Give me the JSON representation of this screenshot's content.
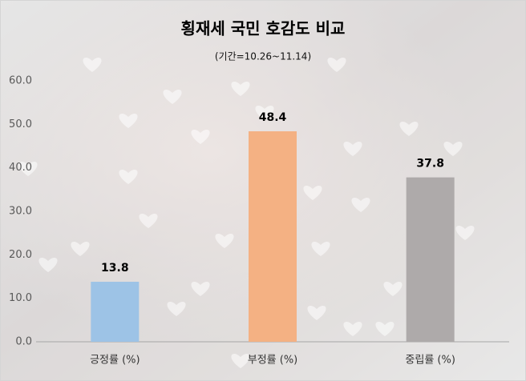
{
  "chart_data": {
    "type": "bar",
    "title": "횡재세 국민 호감도 비교",
    "subtitle": "(기간=10.26~11.14)",
    "categories": [
      "긍정률 (%)",
      "부정률 (%)",
      "중립률 (%)"
    ],
    "values": [
      13.8,
      48.4,
      37.8
    ],
    "colors": [
      "#9dc3e6",
      "#f4b183",
      "#aeaaaa"
    ],
    "ylim": [
      0,
      60
    ],
    "yticks": [
      {
        "value": 0,
        "label": "0.0"
      },
      {
        "value": 10,
        "label": "10.0"
      },
      {
        "value": 20,
        "label": "20.0"
      },
      {
        "value": 30,
        "label": "30.0"
      },
      {
        "value": 40,
        "label": "40.0"
      },
      {
        "value": 50,
        "label": "50.0"
      },
      {
        "value": 60,
        "label": "60.0"
      }
    ],
    "grid": false
  }
}
